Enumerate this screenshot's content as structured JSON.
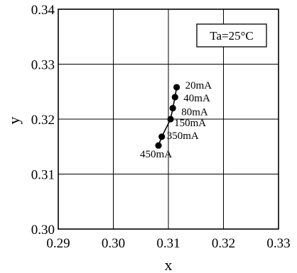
{
  "chart_data": {
    "type": "line",
    "xlabel": "x",
    "ylabel": "y",
    "xlim": [
      0.29,
      0.33
    ],
    "ylim": [
      0.3,
      0.34
    ],
    "x_ticks": [
      "0.29",
      "0.30",
      "0.31",
      "0.32",
      "0.33"
    ],
    "y_ticks": [
      "0.30",
      "0.31",
      "0.32",
      "0.33",
      "0.34"
    ],
    "grid": true,
    "annotation_box": "Ta=25°C",
    "points": [
      {
        "label": "20mA",
        "x": 0.3115,
        "y": 0.3258
      },
      {
        "label": "40mA",
        "x": 0.3112,
        "y": 0.324
      },
      {
        "label": "80mA",
        "x": 0.3108,
        "y": 0.322
      },
      {
        "label": "150mA",
        "x": 0.3104,
        "y": 0.32
      },
      {
        "label": "350mA",
        "x": 0.3088,
        "y": 0.3168
      },
      {
        "label": "450mA",
        "x": 0.3082,
        "y": 0.3152
      }
    ]
  }
}
